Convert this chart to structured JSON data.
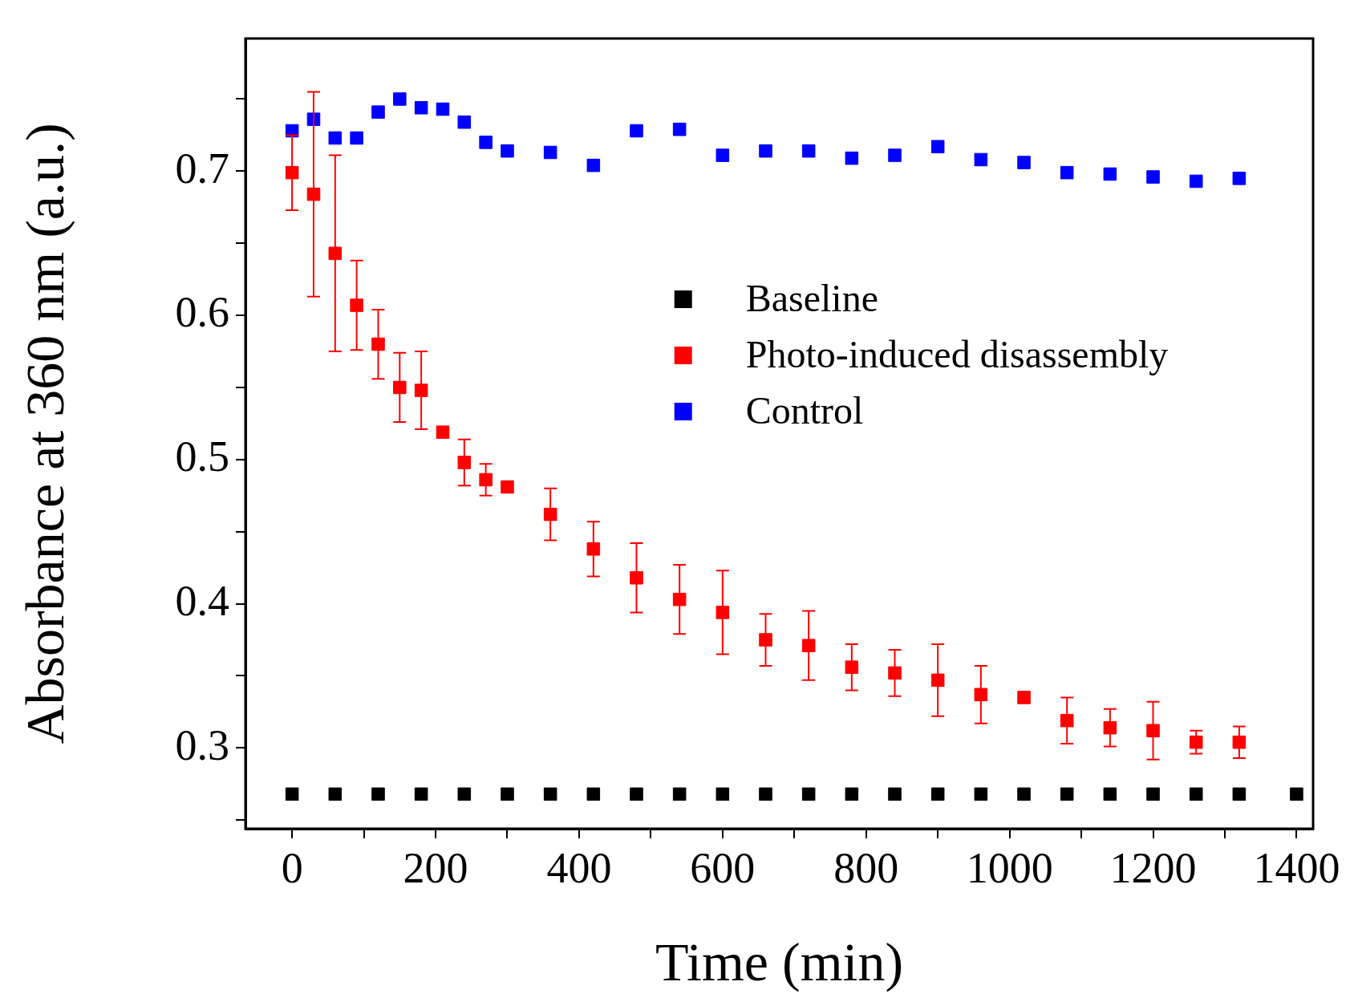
{
  "chart_data": {
    "type": "scatter",
    "xlabel": "Time (min)",
    "ylabel": "Absorbance at 360 nm (a.u.)",
    "xlim": [
      -65,
      1423
    ],
    "ylim": [
      0.244,
      0.792
    ],
    "xticks": [
      0,
      {
        "value": 100,
        "label": null
      },
      200,
      {
        "value": 300,
        "label": null
      },
      400,
      {
        "value": 500,
        "label": null
      },
      600,
      {
        "value": 700,
        "label": null
      },
      800,
      {
        "value": 900,
        "label": null
      },
      1000,
      {
        "value": 1100,
        "label": null
      },
      1200,
      {
        "value": 1300,
        "label": null
      },
      1400
    ],
    "yticks": [
      {
        "value": 0.25,
        "label": null
      },
      0.3,
      {
        "value": 0.35,
        "label": null
      },
      0.4,
      {
        "value": 0.45,
        "label": null
      },
      0.5,
      {
        "value": 0.55,
        "label": null
      },
      0.6,
      {
        "value": 0.65,
        "label": null
      },
      0.7,
      {
        "value": 0.75,
        "label": null
      }
    ],
    "grid": false,
    "legend": "right",
    "marker": "square",
    "series": [
      {
        "name": "Baseline",
        "color": "#000000",
        "x": [
          0,
          60,
          120,
          180,
          240,
          300,
          360,
          420,
          480,
          540,
          600,
          660,
          720,
          780,
          840,
          900,
          960,
          1020,
          1080,
          1140,
          1200,
          1260,
          1320,
          1400
        ],
        "values": [
          0.268,
          0.268,
          0.268,
          0.268,
          0.268,
          0.268,
          0.268,
          0.268,
          0.268,
          0.268,
          0.268,
          0.268,
          0.268,
          0.268,
          0.268,
          0.268,
          0.268,
          0.268,
          0.268,
          0.268,
          0.268,
          0.268,
          0.268,
          0.268
        ]
      },
      {
        "name": "Photo-induced disassembly",
        "color": "#ff0000",
        "x": [
          0,
          30,
          60,
          90,
          120,
          150,
          180,
          210,
          240,
          270,
          300,
          360,
          420,
          480,
          540,
          600,
          660,
          720,
          780,
          840,
          900,
          960,
          1020,
          1080,
          1140,
          1200,
          1260,
          1320
        ],
        "values": [
          0.699,
          0.684,
          0.643,
          0.607,
          0.58,
          0.55,
          0.548,
          0.519,
          0.498,
          0.486,
          0.481,
          0.462,
          0.438,
          0.418,
          0.403,
          0.394,
          0.375,
          0.371,
          0.356,
          0.352,
          0.347,
          0.337,
          0.335,
          0.319,
          0.314,
          0.312,
          0.304,
          0.304
        ],
        "errors": [
          0.026,
          0.071,
          0.068,
          0.031,
          0.024,
          0.024,
          0.027,
          null,
          0.016,
          0.011,
          null,
          0.018,
          0.019,
          0.024,
          0.024,
          0.029,
          0.018,
          0.024,
          0.016,
          0.016,
          0.025,
          0.02,
          null,
          0.016,
          0.013,
          0.02,
          0.008,
          0.011
        ]
      },
      {
        "name": "Control",
        "color": "#0000ff",
        "x": [
          0,
          30,
          60,
          90,
          120,
          150,
          180,
          210,
          240,
          270,
          300,
          360,
          420,
          480,
          540,
          600,
          660,
          720,
          780,
          840,
          900,
          960,
          1020,
          1080,
          1140,
          1200,
          1260,
          1320
        ],
        "values": [
          0.728,
          0.736,
          0.723,
          0.723,
          0.741,
          0.75,
          0.744,
          0.743,
          0.734,
          0.72,
          0.714,
          0.713,
          0.704,
          0.728,
          0.729,
          0.711,
          0.714,
          0.714,
          0.709,
          0.711,
          0.717,
          0.708,
          0.706,
          0.699,
          0.698,
          0.696,
          0.693,
          0.695
        ]
      }
    ]
  }
}
